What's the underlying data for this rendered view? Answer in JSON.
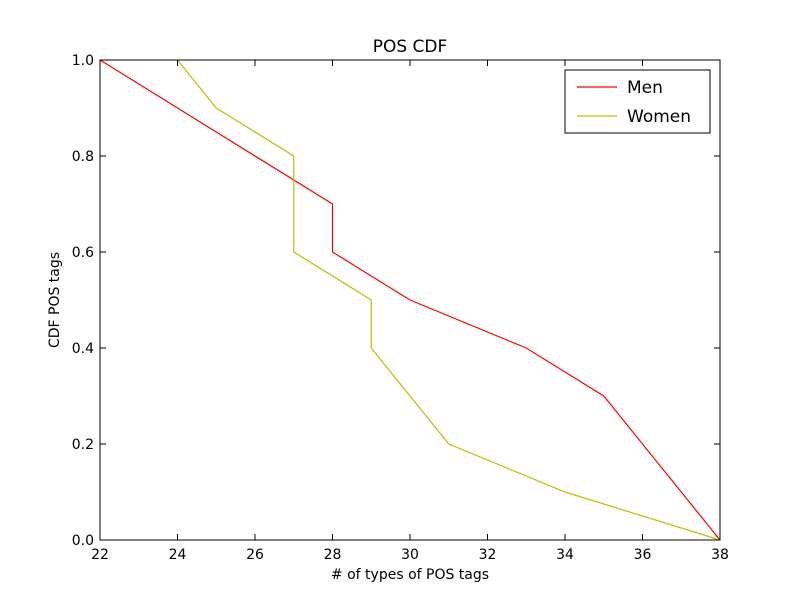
{
  "chart_data": {
    "type": "line",
    "title": "POS CDF",
    "xlabel": "# of types of POS tags",
    "ylabel": "CDF POS tags",
    "xlim": [
      22,
      38
    ],
    "ylim": [
      0.0,
      1.0
    ],
    "xticks": [
      22,
      24,
      26,
      28,
      30,
      32,
      34,
      36,
      38
    ],
    "yticks": [
      0.0,
      0.2,
      0.4,
      0.6,
      0.8,
      1.0
    ],
    "grid": false,
    "legend_position": "top-right",
    "series": [
      {
        "name": "Men",
        "color": "#ff0000",
        "x": [
          22,
          28,
          28,
          30,
          33,
          35,
          38
        ],
        "y": [
          1.0,
          0.7,
          0.6,
          0.5,
          0.4,
          0.3,
          0.0
        ]
      },
      {
        "name": "Women",
        "color": "#bfbf00",
        "x": [
          24,
          25,
          27,
          27,
          29,
          29,
          31,
          34,
          38
        ],
        "y": [
          1.0,
          0.9,
          0.8,
          0.6,
          0.5,
          0.4,
          0.2,
          0.1,
          0.0
        ]
      }
    ]
  }
}
